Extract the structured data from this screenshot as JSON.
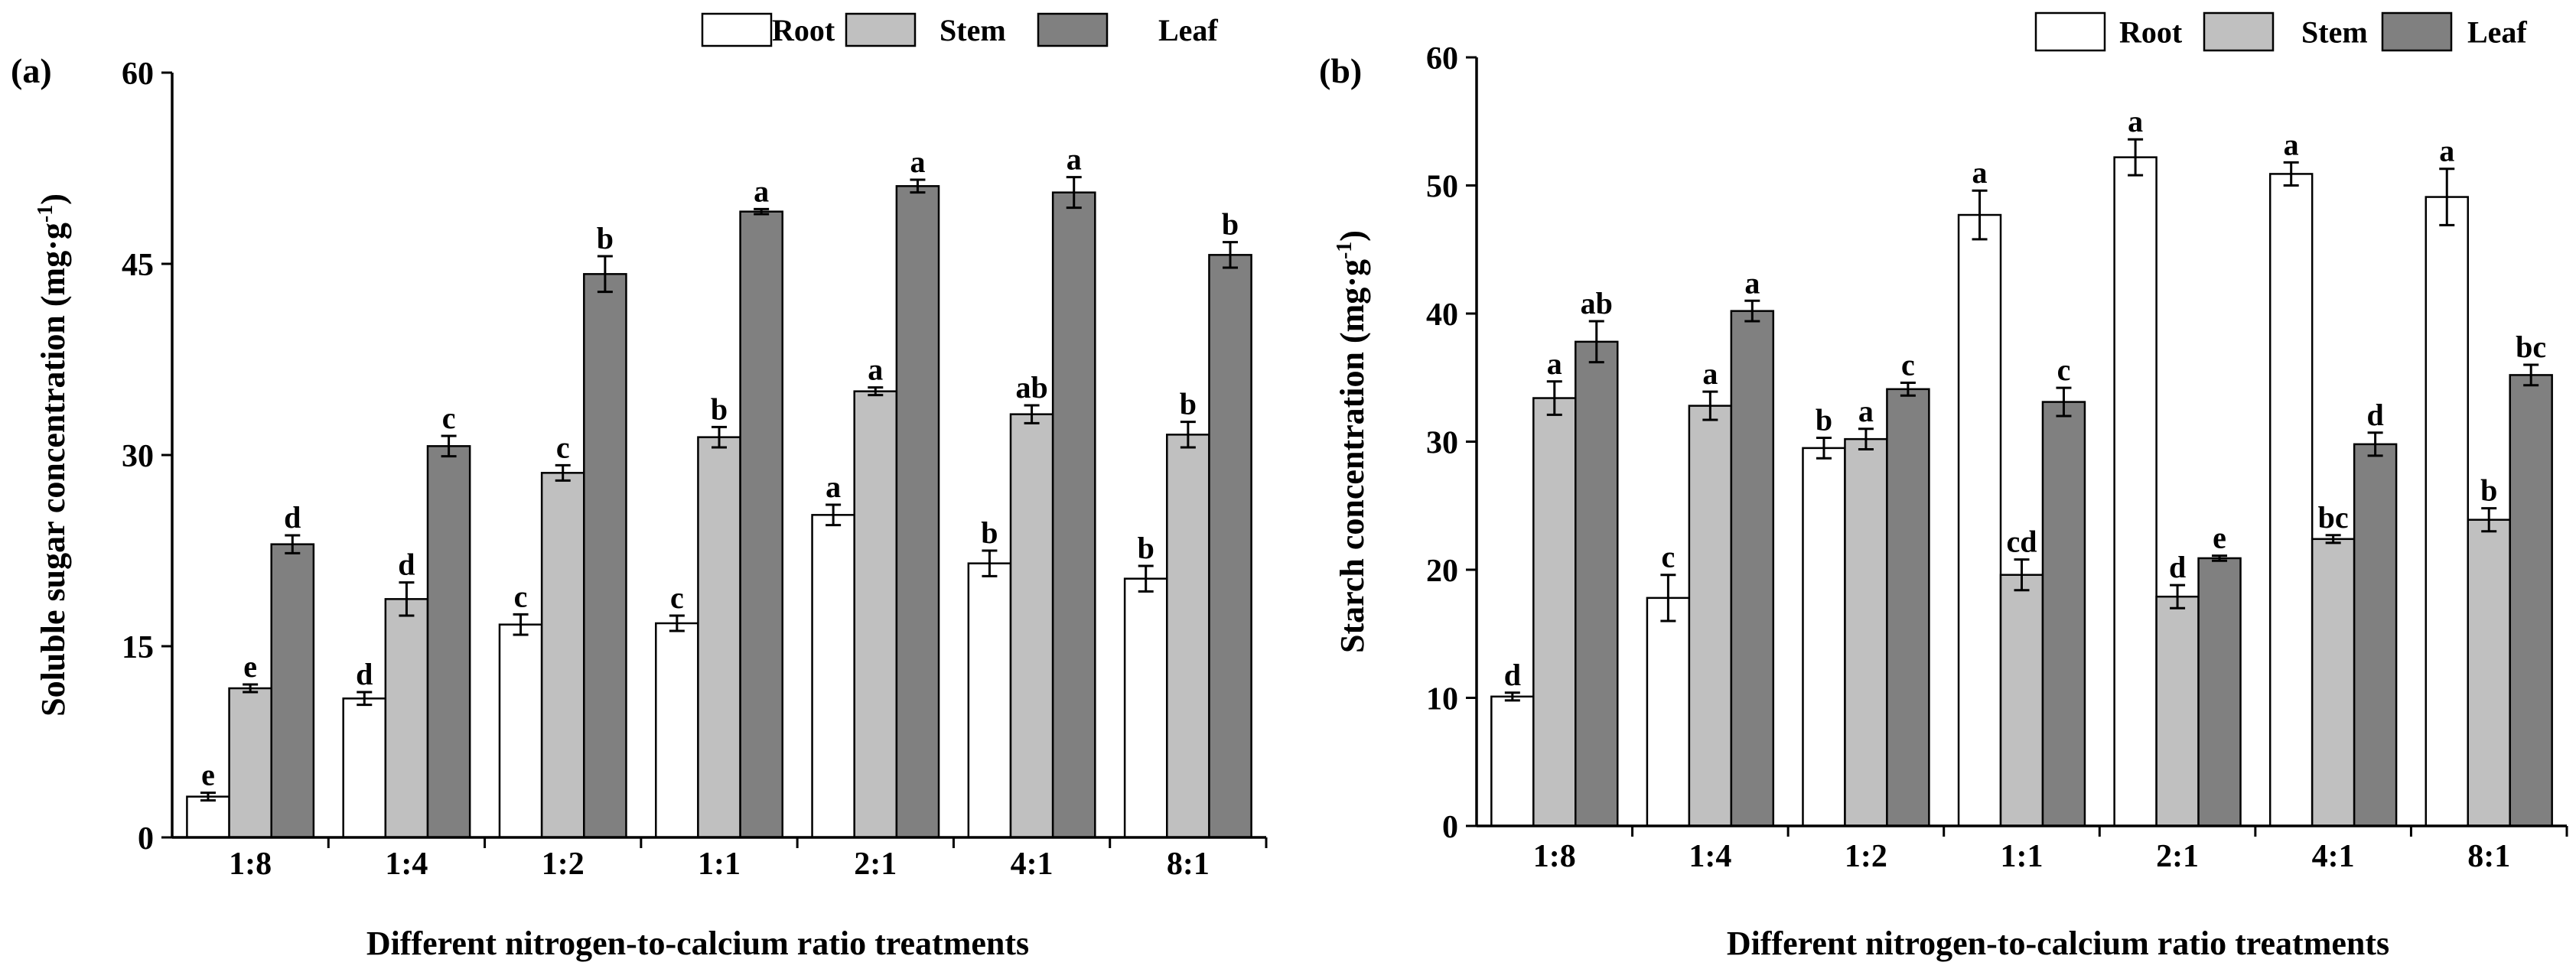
{
  "chart_data": [
    {
      "type": "bar",
      "panel_label": "(a)",
      "title": "",
      "xlabel": "Different nitrogen-to-calcium ratio treatments",
      "ylabel": "Soluble sugar concentration (mg·g",
      "ylabel_sup": "-1",
      "ylabel_close": ")",
      "ylim": [
        0,
        60
      ],
      "yticks": [
        "0",
        "15",
        "30",
        "45",
        "60"
      ],
      "categories": [
        "1:8",
        "1:4",
        "1:2",
        "1:1",
        "2:1",
        "4:1",
        "8:1"
      ],
      "legend": [
        "Root",
        "Stem",
        "Leaf"
      ],
      "series": [
        {
          "name": "Root",
          "color": "#ffffff",
          "values": [
            3.2,
            10.9,
            16.7,
            16.8,
            25.3,
            21.5,
            20.3
          ],
          "errors": [
            0.3,
            0.5,
            0.8,
            0.6,
            0.8,
            1.0,
            1.0
          ],
          "letters": [
            "e",
            "d",
            "c",
            "c",
            "a",
            "b",
            "b"
          ]
        },
        {
          "name": "Stem",
          "color": "#c0c0c0",
          "values": [
            11.7,
            18.7,
            28.6,
            31.4,
            35.0,
            33.2,
            31.6
          ],
          "errors": [
            0.3,
            1.3,
            0.6,
            0.8,
            0.3,
            0.7,
            1.0
          ],
          "letters": [
            "e",
            "d",
            "c",
            "b",
            "a",
            "ab",
            "b"
          ]
        },
        {
          "name": "Leaf",
          "color": "#808080",
          "values": [
            23.0,
            30.7,
            44.2,
            49.1,
            51.1,
            50.6,
            45.7
          ],
          "errors": [
            0.7,
            0.8,
            1.4,
            0.2,
            0.5,
            1.2,
            1.0
          ],
          "letters": [
            "d",
            "c",
            "b",
            "a",
            "a",
            "a",
            "b"
          ]
        }
      ]
    },
    {
      "type": "bar",
      "panel_label": "(b)",
      "title": "",
      "xlabel": "Different nitrogen-to-calcium ratio treatments",
      "ylabel": "Starch concentration (mg·g",
      "ylabel_sup": "-1",
      "ylabel_close": ")",
      "ylim": [
        0,
        60
      ],
      "yticks": [
        "0",
        "10",
        "20",
        "30",
        "40",
        "50",
        "60"
      ],
      "categories": [
        "1:8",
        "1:4",
        "1:2",
        "1:1",
        "2:1",
        "4:1",
        "8:1"
      ],
      "legend": [
        "Root",
        "Stem",
        "Leaf"
      ],
      "series": [
        {
          "name": "Root",
          "color": "#ffffff",
          "values": [
            10.1,
            17.8,
            29.5,
            47.7,
            52.2,
            50.9,
            49.1
          ],
          "errors": [
            0.3,
            1.8,
            0.8,
            1.9,
            1.4,
            0.9,
            2.2
          ],
          "letters": [
            "d",
            "c",
            "b",
            "a",
            "a",
            "a",
            "a"
          ]
        },
        {
          "name": "Stem",
          "color": "#c0c0c0",
          "values": [
            33.4,
            32.8,
            30.2,
            19.6,
            17.9,
            22.4,
            23.9
          ],
          "errors": [
            1.3,
            1.1,
            0.8,
            1.2,
            0.9,
            0.3,
            0.9
          ],
          "letters": [
            "a",
            "a",
            "a",
            "cd",
            "d",
            "bc",
            "b"
          ]
        },
        {
          "name": "Leaf",
          "color": "#808080",
          "values": [
            37.8,
            40.2,
            34.1,
            33.1,
            20.9,
            29.8,
            35.2
          ],
          "errors": [
            1.6,
            0.8,
            0.5,
            1.1,
            0.2,
            0.9,
            0.8
          ],
          "letters": [
            "ab",
            "a",
            "c",
            "c",
            "e",
            "d",
            "bc"
          ]
        }
      ]
    }
  ]
}
